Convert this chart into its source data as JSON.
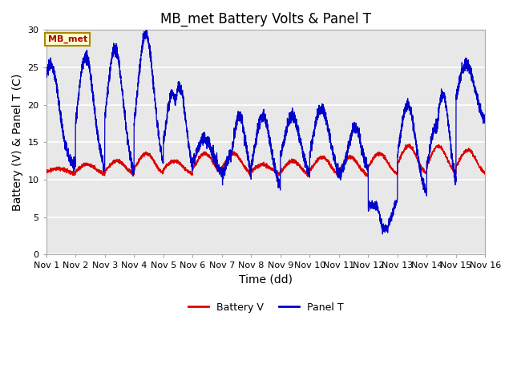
{
  "title": "MB_met Battery Volts & Panel T",
  "xlabel": "Time (dd)",
  "ylabel": "Battery (V) & Panel T (C)",
  "ylim": [
    0,
    30
  ],
  "xlim": [
    0,
    15
  ],
  "xtick_labels": [
    "Nov 1",
    "Nov 2",
    "Nov 3",
    "Nov 4",
    "Nov 5",
    "Nov 6",
    "Nov 7",
    "Nov 8",
    "Nov 9",
    "Nov 10",
    "Nov 11",
    "Nov 12",
    "Nov 13",
    "Nov 14",
    "Nov 15",
    "Nov 16"
  ],
  "xtick_positions": [
    0,
    1,
    2,
    3,
    4,
    5,
    6,
    7,
    8,
    9,
    10,
    11,
    12,
    13,
    14,
    15
  ],
  "ytick_positions": [
    0,
    5,
    10,
    15,
    20,
    25,
    30
  ],
  "bg_color": "#e8e8e8",
  "fig_color": "#ffffff",
  "battery_color": "#dd0000",
  "panel_color": "#0000cc",
  "label_box_text": "MB_met",
  "label_box_facecolor": "#ffffcc",
  "label_box_edgecolor": "#aa8800",
  "label_box_textcolor": "#aa0000",
  "legend_battery": "Battery V",
  "legend_panel": "Panel T",
  "title_fontsize": 12,
  "axis_label_fontsize": 10,
  "tick_fontsize": 8,
  "grid_color": "#ffffff",
  "spine_color": "#aaaaaa"
}
